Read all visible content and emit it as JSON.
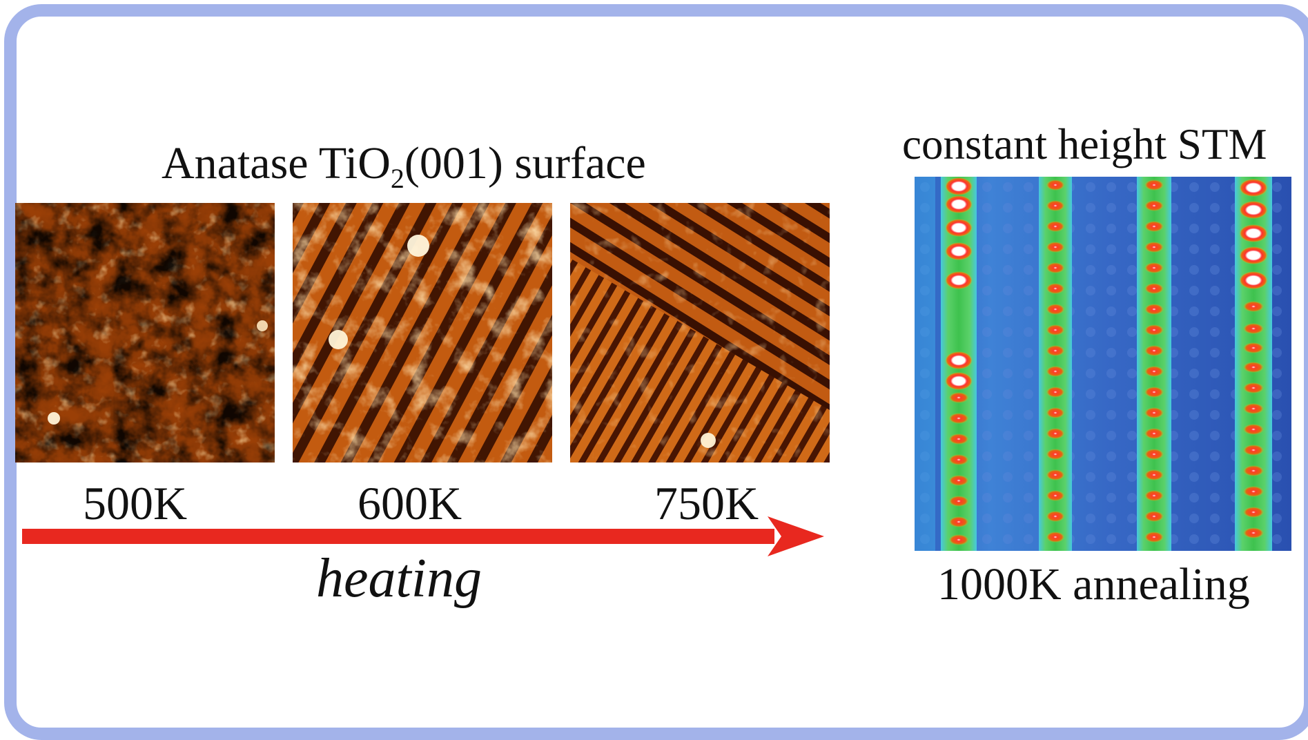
{
  "title": {
    "prefix": "Anatase TiO",
    "subscript": "2",
    "suffix": "(001) surface"
  },
  "panels": [
    {
      "label": "500K",
      "kind": "stm-topography"
    },
    {
      "label": "600K",
      "kind": "stm-topography"
    },
    {
      "label": "750K",
      "kind": "stm-topography"
    }
  ],
  "arrow": {
    "label": "heating",
    "color": "#e8281f"
  },
  "stm": {
    "title": "constant height STM",
    "caption": "1000K annealing"
  },
  "colors": {
    "frame": "#a3b3ea",
    "copper_dark": "#2a0800",
    "copper_mid": "#b04a08",
    "copper_bright": "#f3a24a",
    "stm_background": "#3a68c4",
    "stm_rows": "#3bc65a",
    "stm_spots": "#e8281f"
  }
}
